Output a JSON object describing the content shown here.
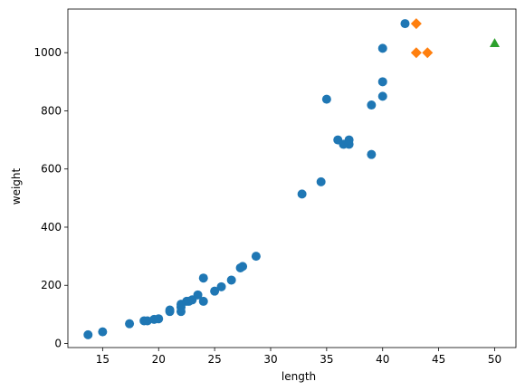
{
  "chart_data": {
    "type": "scatter",
    "title": "",
    "xlabel": "length",
    "ylabel": "weight",
    "xlim": [
      11.9,
      51.9
    ],
    "ylim": [
      -14,
      1150
    ],
    "xticks": [
      15,
      20,
      25,
      30,
      35,
      40,
      45,
      50
    ],
    "yticks": [
      0,
      200,
      400,
      600,
      800,
      1000
    ],
    "grid": false,
    "legend": "none",
    "series": [
      {
        "marker": "circle",
        "color": "#1f77b4",
        "points": [
          [
            13.7,
            30
          ],
          [
            15.0,
            40
          ],
          [
            17.4,
            68
          ],
          [
            18.7,
            78
          ],
          [
            19.0,
            78
          ],
          [
            19.6,
            83
          ],
          [
            20.0,
            85
          ],
          [
            21.0,
            110
          ],
          [
            21.0,
            115
          ],
          [
            22.0,
            110
          ],
          [
            22.0,
            125
          ],
          [
            22.0,
            135
          ],
          [
            22.5,
            145
          ],
          [
            22.7,
            145
          ],
          [
            23.0,
            150
          ],
          [
            23.5,
            167
          ],
          [
            24.0,
            145
          ],
          [
            24.0,
            225
          ],
          [
            25.0,
            180
          ],
          [
            25.6,
            195
          ],
          [
            26.5,
            218
          ],
          [
            27.3,
            260
          ],
          [
            27.5,
            265
          ],
          [
            28.7,
            300
          ],
          [
            32.8,
            514
          ],
          [
            34.5,
            556
          ],
          [
            35.0,
            840
          ],
          [
            36.0,
            700
          ],
          [
            36.5,
            685
          ],
          [
            37.0,
            685
          ],
          [
            37.0,
            700
          ],
          [
            39.0,
            820
          ],
          [
            39.0,
            650
          ],
          [
            40.0,
            850
          ],
          [
            40.0,
            900
          ],
          [
            40.0,
            1015
          ],
          [
            42.0,
            1100
          ]
        ]
      },
      {
        "marker": "diamond",
        "color": "#ff7f0e",
        "points": [
          [
            43.0,
            1100
          ],
          [
            43.0,
            1000
          ],
          [
            44.0,
            1000
          ]
        ]
      },
      {
        "marker": "triangle",
        "color": "#2ca02c",
        "points": [
          [
            50.0,
            1033
          ]
        ]
      }
    ]
  }
}
